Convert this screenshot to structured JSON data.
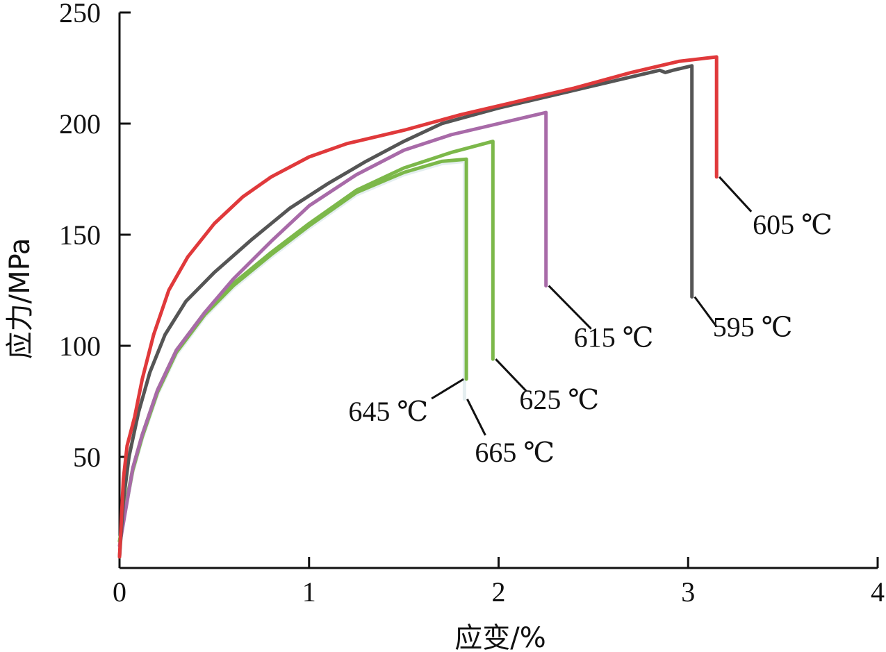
{
  "chart_data": {
    "type": "line",
    "xlabel": "应变/%",
    "ylabel": "应力/MPa",
    "xlim": [
      0,
      4
    ],
    "ylim": [
      0,
      250
    ],
    "xticks": [
      0,
      1,
      2,
      3,
      4
    ],
    "yticks": [
      50,
      100,
      150,
      200,
      250
    ],
    "grid": false,
    "legend": "none",
    "series": [
      {
        "name": "605 ℃",
        "color": "#e0393b",
        "x": [
          0.0,
          0.02,
          0.04,
          0.08,
          0.12,
          0.18,
          0.26,
          0.36,
          0.5,
          0.65,
          0.8,
          1.0,
          1.2,
          1.5,
          1.8,
          2.1,
          2.4,
          2.7,
          2.95,
          3.15,
          3.15
        ],
        "y": [
          5,
          40,
          55,
          68,
          85,
          105,
          125,
          140,
          155,
          167,
          176,
          185,
          191,
          197,
          204,
          210,
          216,
          223,
          228,
          230,
          176
        ]
      },
      {
        "name": "595 ℃",
        "color": "#555555",
        "x": [
          0.0,
          0.02,
          0.05,
          0.1,
          0.16,
          0.24,
          0.35,
          0.5,
          0.7,
          0.9,
          1.1,
          1.3,
          1.5,
          1.7,
          2.0,
          2.3,
          2.6,
          2.85,
          2.88,
          2.92,
          3.02,
          3.02
        ],
        "y": [
          5,
          30,
          50,
          70,
          88,
          105,
          120,
          133,
          148,
          162,
          173,
          183,
          192,
          200,
          207,
          213,
          219,
          224,
          223,
          224,
          226,
          122
        ]
      },
      {
        "name": "615 ℃",
        "color": "#a86aa8",
        "x": [
          0.0,
          0.03,
          0.07,
          0.12,
          0.2,
          0.3,
          0.45,
          0.6,
          0.8,
          1.0,
          1.25,
          1.5,
          1.75,
          2.0,
          2.25,
          2.25
        ],
        "y": [
          10,
          25,
          45,
          60,
          80,
          98,
          115,
          130,
          147,
          163,
          177,
          188,
          195,
          200,
          205,
          127
        ]
      },
      {
        "name": "625 ℃",
        "color": "#7cb84a",
        "x": [
          0.0,
          0.03,
          0.07,
          0.12,
          0.2,
          0.3,
          0.45,
          0.6,
          0.8,
          1.0,
          1.25,
          1.5,
          1.75,
          1.97,
          1.97
        ],
        "y": [
          12,
          27,
          45,
          60,
          80,
          98,
          115,
          128,
          142,
          155,
          170,
          180,
          187,
          192,
          94
        ]
      },
      {
        "name": "645 ℃",
        "color": "#7cb84a",
        "x": [
          0.0,
          0.03,
          0.07,
          0.12,
          0.2,
          0.3,
          0.45,
          0.6,
          0.8,
          1.0,
          1.25,
          1.5,
          1.7,
          1.83,
          1.83
        ],
        "y": [
          12,
          26,
          44,
          59,
          79,
          97,
          114,
          127,
          141,
          154,
          169,
          178,
          183,
          184,
          85
        ]
      },
      {
        "name": "665 ℃",
        "color": "#e4eef0",
        "x": [
          0.0,
          0.03,
          0.07,
          0.12,
          0.2,
          0.3,
          0.45,
          0.6,
          0.8,
          1.0,
          1.25,
          1.5,
          1.7,
          1.82,
          1.82
        ],
        "y": [
          12,
          25,
          43,
          58,
          78,
          96,
          113,
          126,
          140,
          153,
          168,
          177,
          182,
          183,
          76
        ]
      }
    ],
    "annotations": [
      {
        "series": "605 ℃",
        "text": "605 ℃"
      },
      {
        "series": "595 ℃",
        "text": "595 ℃"
      },
      {
        "series": "615 ℃",
        "text": "615 ℃"
      },
      {
        "series": "625 ℃",
        "text": "625 ℃"
      },
      {
        "series": "645 ℃",
        "text": "645 ℃"
      },
      {
        "series": "665 ℃",
        "text": "665 ℃"
      }
    ]
  }
}
